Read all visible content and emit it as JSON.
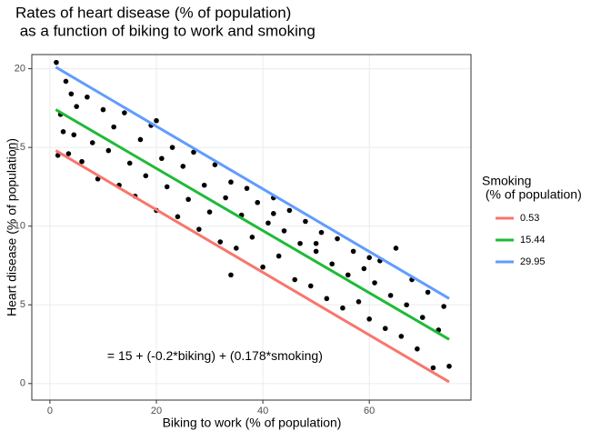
{
  "chart_data": {
    "type": "scatter",
    "title": [
      "Rates of heart disease (% of population)",
      " as a function of biking to work and smoking"
    ],
    "x_label": "Biking to work (% of population)",
    "y_label": "Heart disease (% of population)",
    "annotation": {
      "text": "= 15 + (-0.2*biking) + (0.178*smoking)",
      "x": 31,
      "y": 1.7
    },
    "xlim": [
      -3.4,
      79.1
    ],
    "ylim": [
      -1.05,
      20.9
    ],
    "xticks": [
      0,
      20,
      40,
      60
    ],
    "yticks": [
      0,
      5,
      10,
      15,
      20
    ],
    "grid": true,
    "points": {
      "color": "#000000",
      "x": [
        1.2,
        1.5,
        2,
        2.5,
        3,
        3.5,
        4,
        4.5,
        5,
        6,
        7,
        8,
        9,
        10,
        11,
        12,
        13,
        14,
        15,
        16,
        17,
        18,
        19,
        20,
        21,
        22,
        23,
        24,
        25,
        26,
        27,
        28,
        29,
        30,
        31,
        32,
        33,
        34,
        35,
        36,
        37,
        38,
        39,
        40,
        41,
        42,
        43,
        44,
        45,
        46,
        47,
        48,
        49,
        50,
        51,
        52,
        53,
        54,
        55,
        56,
        57,
        58,
        59,
        60,
        61,
        62,
        63,
        64,
        65,
        66,
        67,
        68,
        69,
        70,
        71,
        72,
        73,
        74,
        75,
        34,
        50,
        42,
        20,
        60
      ],
      "y": [
        20.4,
        14.5,
        17.1,
        16.0,
        19.2,
        14.6,
        18.4,
        15.8,
        17.6,
        14.1,
        18.2,
        15.3,
        13.0,
        17.4,
        14.8,
        16.3,
        12.6,
        17.2,
        14.0,
        11.9,
        15.5,
        13.2,
        16.4,
        11.0,
        14.3,
        12.5,
        15.0,
        10.6,
        13.8,
        11.7,
        14.7,
        9.8,
        12.6,
        10.9,
        13.9,
        9.0,
        11.8,
        12.8,
        8.6,
        10.7,
        12.4,
        9.3,
        11.5,
        7.4,
        10.2,
        11.8,
        8.1,
        9.7,
        11.0,
        6.6,
        8.9,
        10.3,
        6.2,
        8.4,
        9.6,
        5.4,
        7.6,
        9.2,
        4.8,
        6.9,
        8.4,
        5.2,
        7.3,
        4.1,
        6.4,
        7.8,
        3.5,
        5.6,
        8.6,
        3.0,
        5.0,
        6.6,
        2.2,
        4.2,
        5.8,
        1.0,
        3.4,
        4.9,
        1.1,
        6.9,
        8.9,
        10.8,
        16.7,
        8.0
      ]
    },
    "legend_title": [
      "Smoking",
      " (% of population)"
    ],
    "series": [
      {
        "name": "0.53",
        "color": "#f8766d",
        "x": [
          1.1,
          75
        ],
        "values": [
          14.8,
          0.1
        ]
      },
      {
        "name": "15.44",
        "color": "#1fba38",
        "x": [
          1.1,
          75
        ],
        "values": [
          17.4,
          2.8
        ]
      },
      {
        "name": "29.95",
        "color": "#619cff",
        "x": [
          1.1,
          75
        ],
        "values": [
          20.1,
          5.4
        ]
      }
    ]
  }
}
